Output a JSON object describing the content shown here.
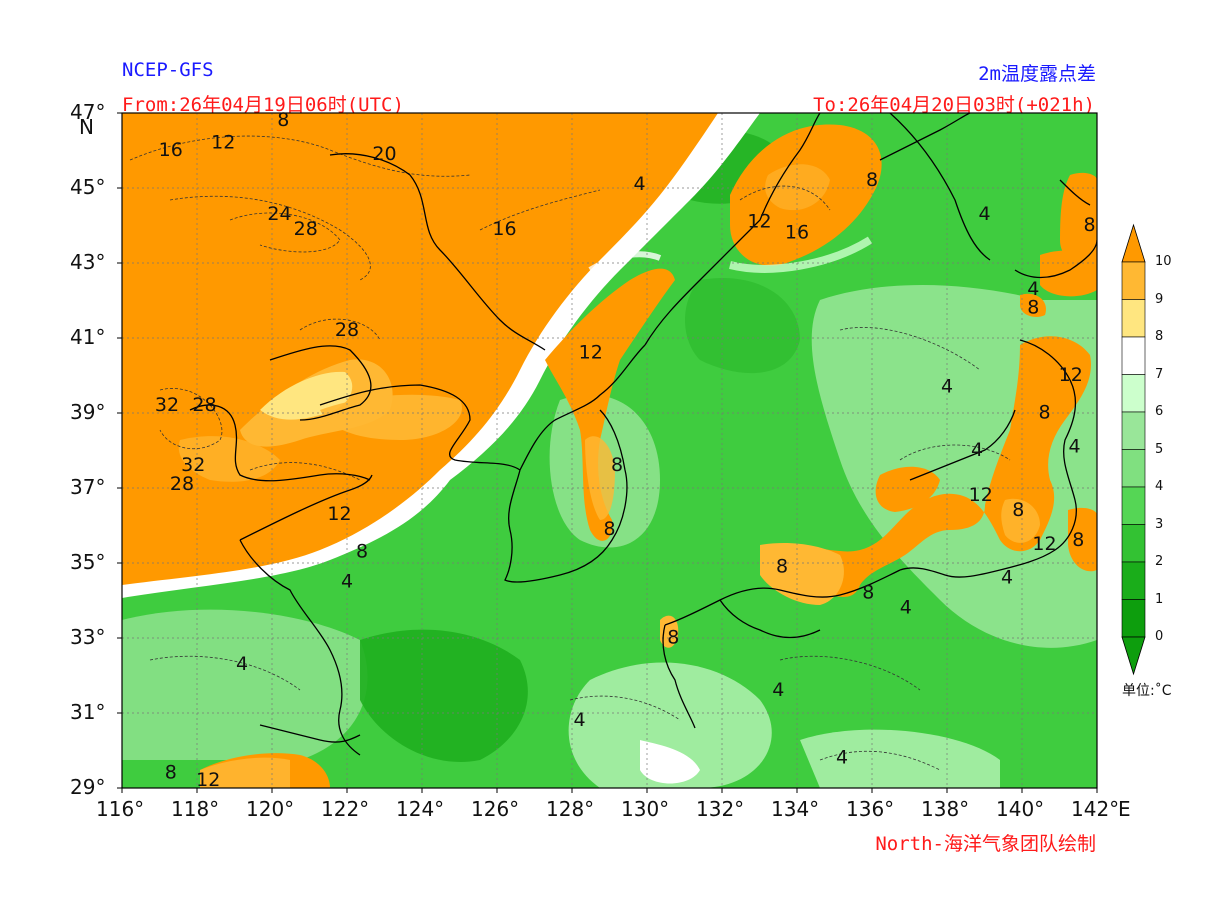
{
  "header": {
    "model": "NCEP-GFS",
    "variable": "2m温度露点差",
    "from": "From:26年04月19日06时(UTC)",
    "to": "To:26年04月20日03时(+021h)",
    "credit": "North-海洋气象团队绘制"
  },
  "axes": {
    "lat_ticks": [
      "47°",
      "45°",
      "43°",
      "41°",
      "39°",
      "37°",
      "35°",
      "33°",
      "31°",
      "29°"
    ],
    "lon_ticks": [
      "116°",
      "118°",
      "120°",
      "122°",
      "124°",
      "126°",
      "128°",
      "130°",
      "132°",
      "134°",
      "136°",
      "138°",
      "140°",
      "142°"
    ],
    "lat_unit": "N",
    "lon_unit": "E",
    "lat_range": [
      29,
      47
    ],
    "lon_range": [
      116,
      142
    ]
  },
  "colorbar": {
    "labels": [
      "10",
      "9",
      "8",
      "7",
      "6",
      "5",
      "4",
      "3",
      "2",
      "1",
      "0"
    ],
    "unit_label": "单位:˚C",
    "colors": [
      "#ff9900",
      "#ffb833",
      "#ffe680",
      "#ffffff",
      "#ccffcc",
      "#99e699",
      "#80e080",
      "#55d655",
      "#33c233",
      "#1aad1a",
      "#0d9e0d"
    ]
  },
  "contour_labels": [
    {
      "text": "16",
      "lon": 117.3,
      "lat": 46.0
    },
    {
      "text": "12",
      "lon": 118.7,
      "lat": 46.2
    },
    {
      "text": "8",
      "lon": 120.3,
      "lat": 46.8
    },
    {
      "text": "20",
      "lon": 123.0,
      "lat": 45.9
    },
    {
      "text": "24",
      "lon": 120.2,
      "lat": 44.3
    },
    {
      "text": "28",
      "lon": 120.9,
      "lat": 43.9
    },
    {
      "text": "16",
      "lon": 126.2,
      "lat": 43.9
    },
    {
      "text": "4",
      "lon": 129.8,
      "lat": 45.1
    },
    {
      "text": "12",
      "lon": 133.0,
      "lat": 44.1
    },
    {
      "text": "16",
      "lon": 134.0,
      "lat": 43.8
    },
    {
      "text": "8",
      "lon": 136.0,
      "lat": 45.2
    },
    {
      "text": "4",
      "lon": 139.0,
      "lat": 44.3
    },
    {
      "text": "8",
      "lon": 141.8,
      "lat": 44.0
    },
    {
      "text": "4",
      "lon": 140.3,
      "lat": 42.3
    },
    {
      "text": "8",
      "lon": 140.3,
      "lat": 41.8
    },
    {
      "text": "28",
      "lon": 122.0,
      "lat": 41.2
    },
    {
      "text": "12",
      "lon": 128.5,
      "lat": 40.6
    },
    {
      "text": "32",
      "lon": 117.2,
      "lat": 39.2
    },
    {
      "text": "28",
      "lon": 118.2,
      "lat": 39.2
    },
    {
      "text": "4",
      "lon": 138.0,
      "lat": 39.7
    },
    {
      "text": "12",
      "lon": 141.3,
      "lat": 40.0
    },
    {
      "text": "8",
      "lon": 140.6,
      "lat": 39.0
    },
    {
      "text": "4",
      "lon": 141.4,
      "lat": 38.1
    },
    {
      "text": "4",
      "lon": 138.8,
      "lat": 38.0
    },
    {
      "text": "8",
      "lon": 129.2,
      "lat": 37.6
    },
    {
      "text": "32",
      "lon": 117.9,
      "lat": 37.6
    },
    {
      "text": "28",
      "lon": 117.6,
      "lat": 37.1
    },
    {
      "text": "12",
      "lon": 138.9,
      "lat": 36.8
    },
    {
      "text": "8",
      "lon": 139.9,
      "lat": 36.4
    },
    {
      "text": "12",
      "lon": 121.8,
      "lat": 36.3
    },
    {
      "text": "8",
      "lon": 129.0,
      "lat": 35.9
    },
    {
      "text": "8",
      "lon": 141.5,
      "lat": 35.6
    },
    {
      "text": "12",
      "lon": 140.6,
      "lat": 35.5
    },
    {
      "text": "8",
      "lon": 122.4,
      "lat": 35.3
    },
    {
      "text": "8",
      "lon": 133.6,
      "lat": 34.9
    },
    {
      "text": "4",
      "lon": 139.6,
      "lat": 34.6
    },
    {
      "text": "4",
      "lon": 122.0,
      "lat": 34.5
    },
    {
      "text": "8",
      "lon": 135.9,
      "lat": 34.2
    },
    {
      "text": "4",
      "lon": 136.9,
      "lat": 33.8
    },
    {
      "text": "8",
      "lon": 130.7,
      "lat": 33.0
    },
    {
      "text": "4",
      "lon": 119.2,
      "lat": 32.3
    },
    {
      "text": "4",
      "lon": 133.5,
      "lat": 31.6
    },
    {
      "text": "4",
      "lon": 128.2,
      "lat": 30.8
    },
    {
      "text": "4",
      "lon": 135.2,
      "lat": 29.8
    },
    {
      "text": "8",
      "lon": 117.3,
      "lat": 29.4
    },
    {
      "text": "12",
      "lon": 118.3,
      "lat": 29.2
    }
  ]
}
